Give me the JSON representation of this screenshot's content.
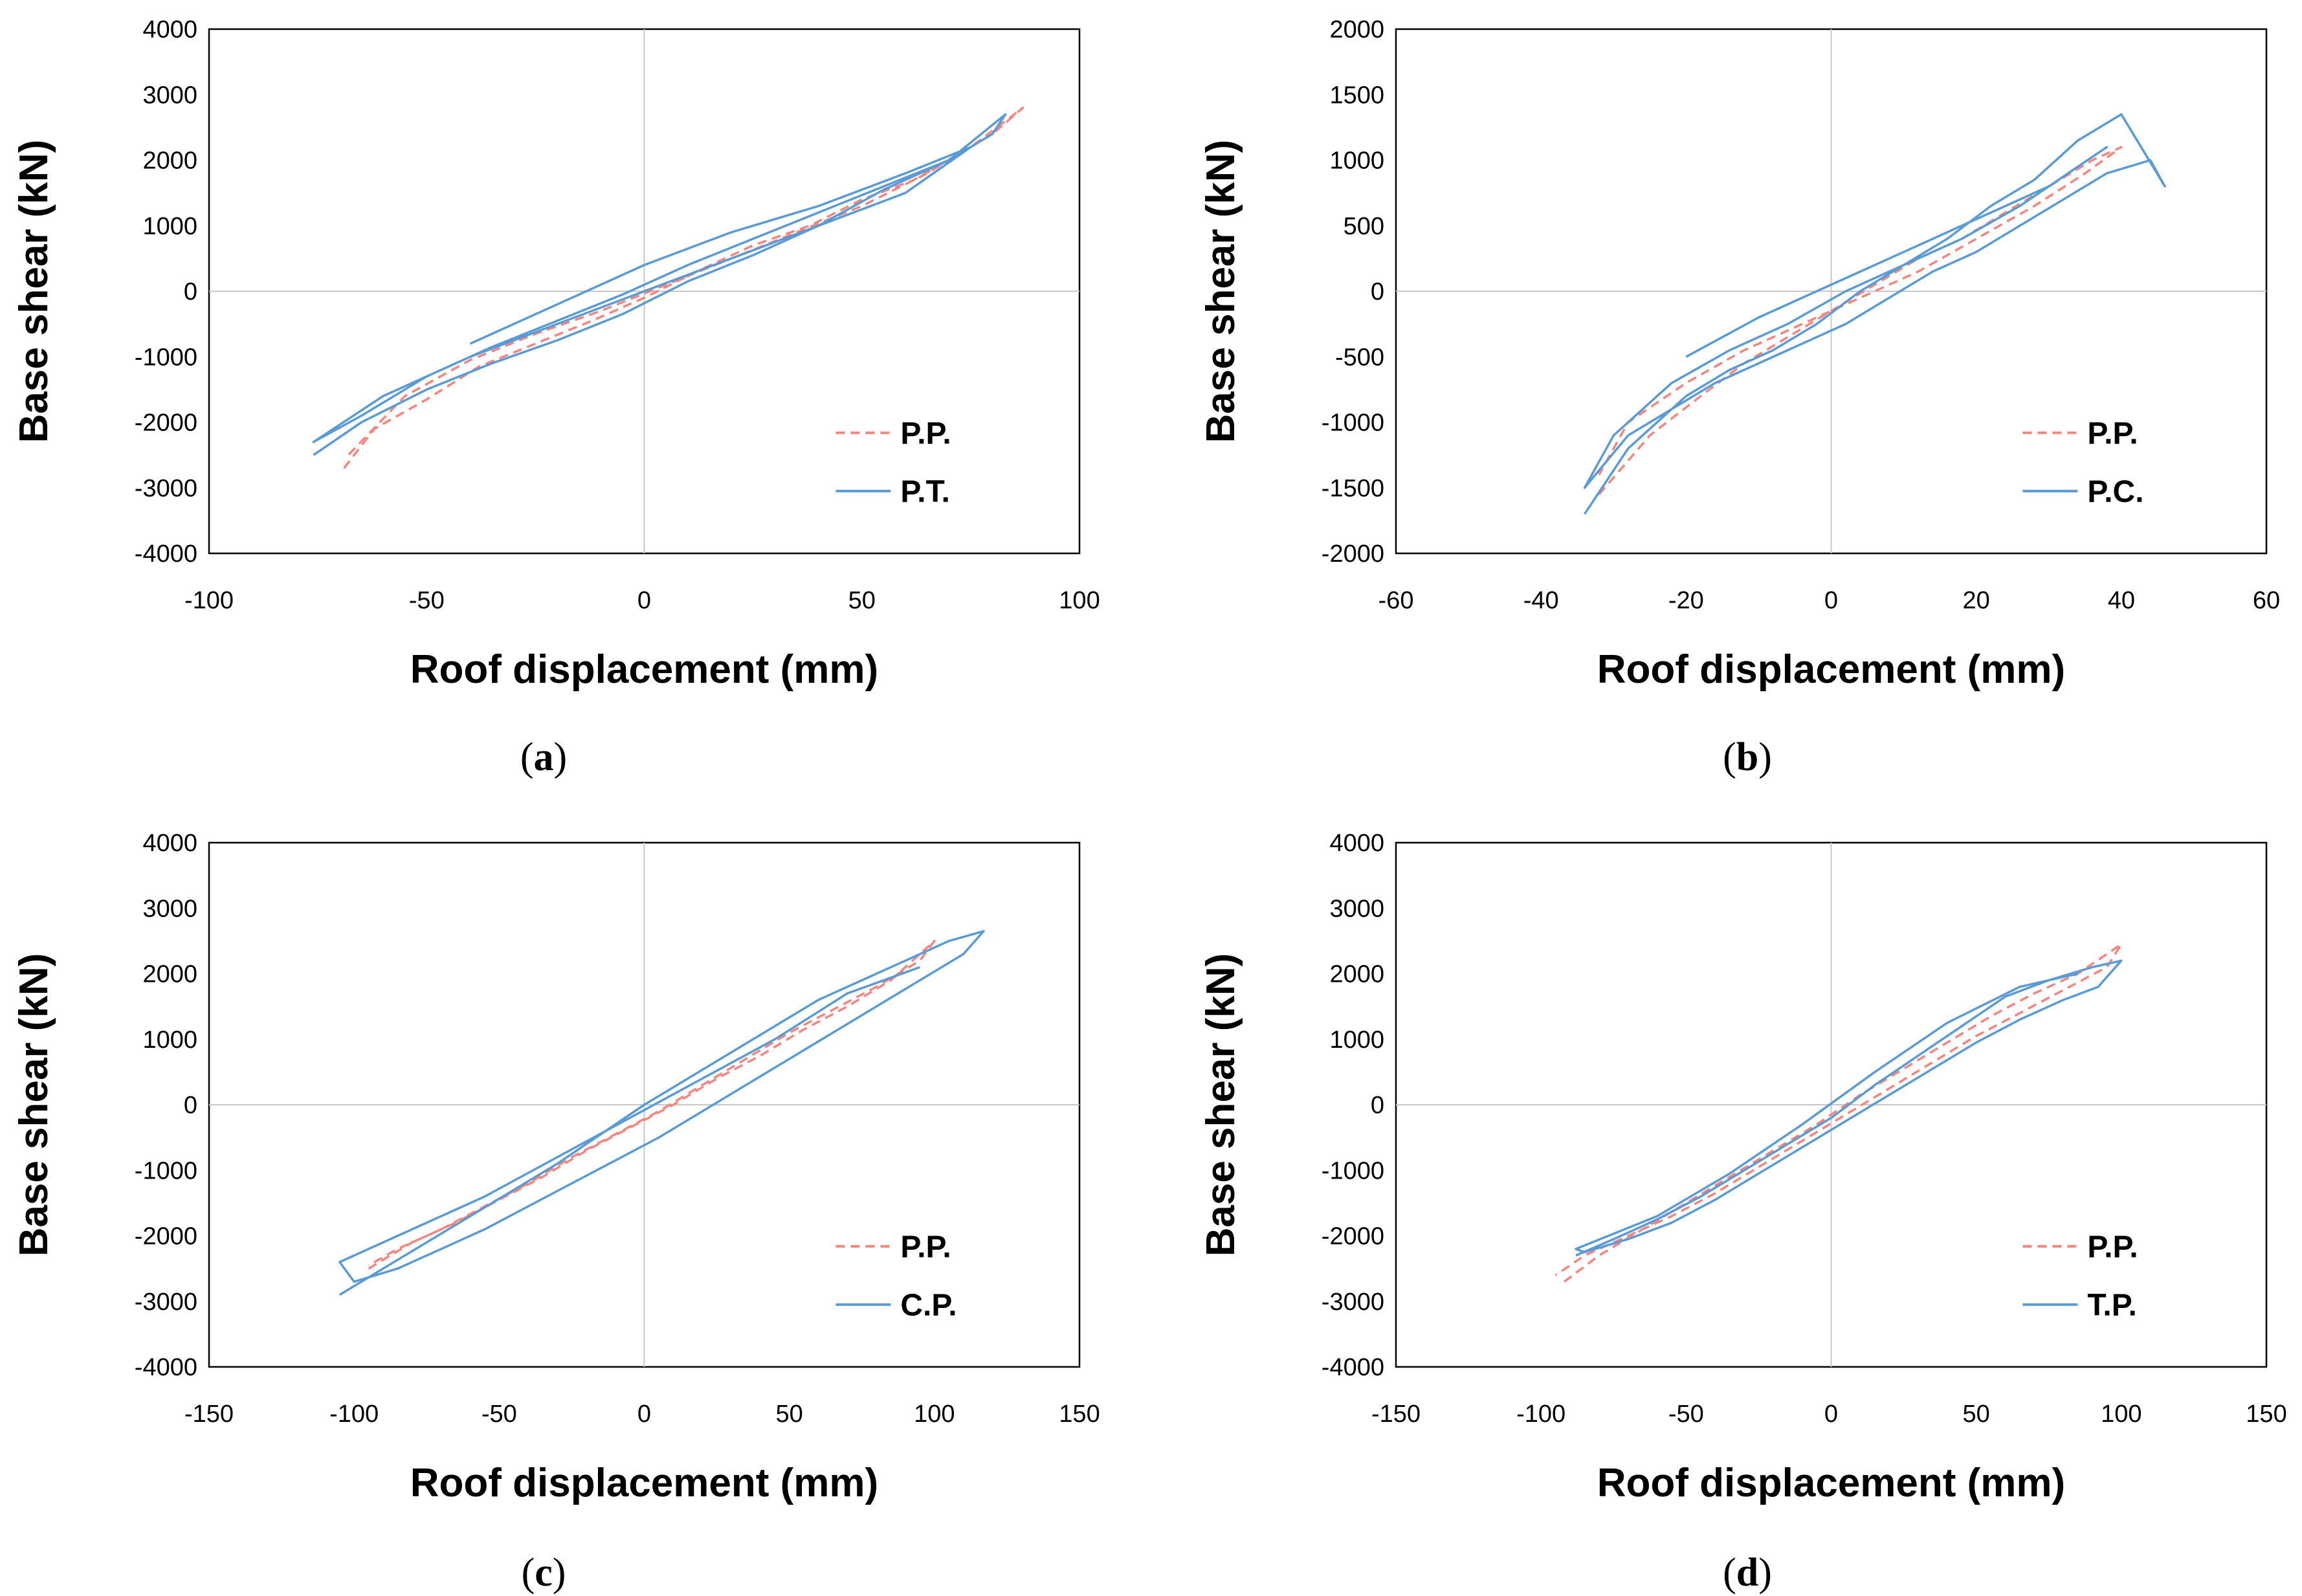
{
  "chart_data": [
    {
      "id": "a",
      "type": "line",
      "caption": "a",
      "xlabel": "Roof displacement (mm)",
      "ylabel": "Base shear (kN)",
      "xlim": [
        -100,
        100
      ],
      "ylim": [
        -4000,
        4000
      ],
      "xticks": [
        "-100",
        "-50",
        "0",
        "50",
        "100"
      ],
      "yticks": [
        "4000",
        "3000",
        "2000",
        "1000",
        "0",
        "-1000",
        "-2000",
        "-3000",
        "-4000"
      ],
      "grid": "zero-lines",
      "legend": "bottom-right",
      "series": [
        {
          "name": "P.P.",
          "style": "dashed",
          "color": "#f4857f",
          "x": [
            -69,
            -62,
            -50,
            -38,
            -25,
            -12,
            0,
            12,
            25,
            38,
            50,
            62,
            75,
            87,
            80,
            65,
            50,
            35,
            20,
            5,
            -10,
            -25,
            -40,
            -55,
            -68
          ],
          "y": [
            -2700,
            -2100,
            -1650,
            -1150,
            -800,
            -450,
            -100,
            300,
            700,
            1000,
            1400,
            1700,
            2200,
            2800,
            2400,
            1800,
            1300,
            900,
            500,
            100,
            -300,
            -650,
            -1050,
            -1600,
            -2500
          ]
        },
        {
          "name": "P.T.",
          "style": "solid",
          "color": "#5b9bd5",
          "x": [
            -76,
            -65,
            -50,
            -35,
            -20,
            -5,
            10,
            25,
            40,
            55,
            70,
            83,
            80,
            70,
            55,
            40,
            25,
            10,
            -5,
            -20,
            -35,
            -50,
            -65,
            -76,
            -60,
            -40,
            -20,
            0,
            20,
            40,
            60,
            75,
            60,
            40,
            20,
            0,
            -20,
            -40
          ],
          "y": [
            -2500,
            -2000,
            -1500,
            -1100,
            -750,
            -350,
            150,
            550,
            1000,
            1550,
            2000,
            2700,
            2400,
            2000,
            1600,
            1200,
            800,
            400,
            -50,
            -450,
            -850,
            -1300,
            -1900,
            -2300,
            -1600,
            -1000,
            -500,
            0,
            500,
            1000,
            1500,
            2200,
            1800,
            1300,
            900,
            400,
            -200,
            -800
          ]
        }
      ]
    },
    {
      "id": "b",
      "type": "line",
      "caption": "b",
      "xlabel": "Roof displacement (mm)",
      "ylabel": "Base shear (kN)",
      "xlim": [
        -60,
        60
      ],
      "ylim": [
        -2000,
        2000
      ],
      "xticks": [
        "-60",
        "-40",
        "-20",
        "0",
        "20",
        "40",
        "60"
      ],
      "yticks": [
        "2000",
        "1500",
        "1000",
        "500",
        "0",
        "-500",
        "-1000",
        "-1500",
        "-2000"
      ],
      "grid": "zero-lines",
      "legend": "bottom-right",
      "series": [
        {
          "name": "P.P.",
          "style": "dashed",
          "color": "#f4857f",
          "x": [
            -32,
            -25,
            -18,
            -12,
            -6,
            0,
            6,
            12,
            18,
            24,
            30,
            36,
            40,
            35,
            28,
            20,
            12,
            4,
            -4,
            -12,
            -20,
            -28,
            -32
          ],
          "y": [
            -1550,
            -1100,
            -800,
            -550,
            -350,
            -150,
            50,
            250,
            400,
            600,
            800,
            1000,
            1100,
            900,
            650,
            400,
            150,
            -50,
            -250,
            -450,
            -700,
            -1000,
            -1400
          ]
        },
        {
          "name": "P.C.",
          "style": "solid",
          "color": "#5b9bd5",
          "x": [
            -34,
            -28,
            -20,
            -14,
            -8,
            -2,
            4,
            10,
            16,
            22,
            28,
            34,
            40,
            46,
            44,
            38,
            32,
            26,
            20,
            14,
            8,
            2,
            -4,
            -10,
            -16,
            -22,
            -28,
            -34,
            -30,
            -22,
            -14,
            -6,
            2,
            10,
            18,
            26,
            34,
            38,
            30,
            20,
            10,
            0,
            -10,
            -20
          ],
          "y": [
            -1700,
            -1200,
            -800,
            -600,
            -450,
            -250,
            0,
            200,
            400,
            650,
            850,
            1150,
            1350,
            800,
            1000,
            900,
            700,
            500,
            300,
            150,
            -50,
            -250,
            -400,
            -550,
            -700,
            -900,
            -1100,
            -1500,
            -1100,
            -700,
            -450,
            -250,
            0,
            200,
            400,
            650,
            950,
            1100,
            800,
            550,
            300,
            50,
            -200,
            -500
          ]
        }
      ]
    },
    {
      "id": "c",
      "type": "line",
      "caption": "c",
      "xlabel": "Roof displacement (mm)",
      "ylabel": "Base shear (kN)",
      "xlim": [
        -150,
        150
      ],
      "ylim": [
        -4000,
        4000
      ],
      "xticks": [
        "-150",
        "-100",
        "-50",
        "0",
        "50",
        "100",
        "150"
      ],
      "yticks": [
        "4000",
        "3000",
        "2000",
        "1000",
        "0",
        "-1000",
        "-2000",
        "-3000",
        "-4000"
      ],
      "grid": "zero-lines",
      "legend": "bottom-right",
      "series": [
        {
          "name": "P.P.",
          "style": "dashed",
          "color": "#f4857f",
          "x": [
            -95,
            -80,
            -65,
            -50,
            -35,
            -20,
            -5,
            10,
            25,
            40,
            55,
            70,
            85,
            100,
            95,
            80,
            65,
            50,
            35,
            20,
            5,
            -10,
            -25,
            -40,
            -55,
            -70,
            -85,
            -95
          ],
          "y": [
            -2500,
            -2100,
            -1800,
            -1450,
            -1100,
            -700,
            -350,
            0,
            400,
            750,
            1150,
            1500,
            1900,
            2500,
            2200,
            1800,
            1450,
            1100,
            700,
            300,
            -100,
            -450,
            -800,
            -1200,
            -1550,
            -1900,
            -2200,
            -2450
          ]
        },
        {
          "name": "C.P.",
          "style": "solid",
          "color": "#5b9bd5",
          "x": [
            -105,
            -90,
            -75,
            -60,
            -45,
            -30,
            -15,
            0,
            15,
            30,
            45,
            60,
            75,
            90,
            105,
            117,
            110,
            95,
            80,
            65,
            50,
            35,
            20,
            5,
            -10,
            -25,
            -40,
            -55,
            -70,
            -85,
            -100,
            -105,
            -80,
            -55,
            -30,
            -5,
            20,
            45,
            70,
            95
          ],
          "y": [
            -2900,
            -2500,
            -2100,
            -1700,
            -1300,
            -900,
            -450,
            0,
            400,
            800,
            1200,
            1600,
            1900,
            2200,
            2500,
            2650,
            2300,
            1900,
            1500,
            1100,
            700,
            300,
            -100,
            -500,
            -850,
            -1200,
            -1550,
            -1900,
            -2200,
            -2500,
            -2700,
            -2400,
            -1900,
            -1400,
            -800,
            -200,
            400,
            1000,
            1700,
            2100
          ]
        }
      ]
    },
    {
      "id": "d",
      "type": "line",
      "caption": "d",
      "xlabel": "Roof displacement (mm)",
      "ylabel": "Base shear (kN)",
      "xlim": [
        -150,
        150
      ],
      "ylim": [
        -4000,
        4000
      ],
      "xticks": [
        "-150",
        "-100",
        "-50",
        "0",
        "50",
        "100",
        "150"
      ],
      "yticks": [
        "4000",
        "3000",
        "2000",
        "1000",
        "0",
        "-1000",
        "-2000",
        "-3000",
        "-4000"
      ],
      "grid": "zero-lines",
      "legend": "bottom-right",
      "series": [
        {
          "name": "P.P.",
          "style": "dashed",
          "color": "#f4857f",
          "x": [
            -92,
            -80,
            -65,
            -50,
            -35,
            -20,
            -5,
            10,
            25,
            40,
            55,
            70,
            85,
            100,
            95,
            80,
            65,
            50,
            35,
            20,
            5,
            -10,
            -25,
            -40,
            -55,
            -70,
            -85,
            -95
          ],
          "y": [
            -2700,
            -2300,
            -1900,
            -1500,
            -1100,
            -700,
            -300,
            150,
            550,
            950,
            1350,
            1700,
            2000,
            2450,
            2100,
            1750,
            1400,
            1050,
            650,
            250,
            -150,
            -550,
            -950,
            -1350,
            -1700,
            -2000,
            -2300,
            -2600
          ]
        },
        {
          "name": "T.P.",
          "style": "solid",
          "color": "#5b9bd5",
          "x": [
            -88,
            -75,
            -60,
            -45,
            -30,
            -15,
            0,
            15,
            30,
            45,
            60,
            75,
            90,
            100,
            92,
            80,
            65,
            50,
            35,
            20,
            5,
            -10,
            -25,
            -40,
            -55,
            -70,
            -85,
            -88,
            -60,
            -35,
            -10,
            15,
            40,
            65,
            85
          ],
          "y": [
            -2300,
            -2050,
            -1750,
            -1400,
            -1000,
            -600,
            -200,
            300,
            750,
            1200,
            1650,
            1900,
            2100,
            2200,
            1800,
            1600,
            1300,
            950,
            550,
            150,
            -250,
            -650,
            -1050,
            -1450,
            -1800,
            -2050,
            -2250,
            -2200,
            -1700,
            -1050,
            -300,
            500,
            1250,
            1800,
            2000
          ]
        }
      ]
    }
  ]
}
